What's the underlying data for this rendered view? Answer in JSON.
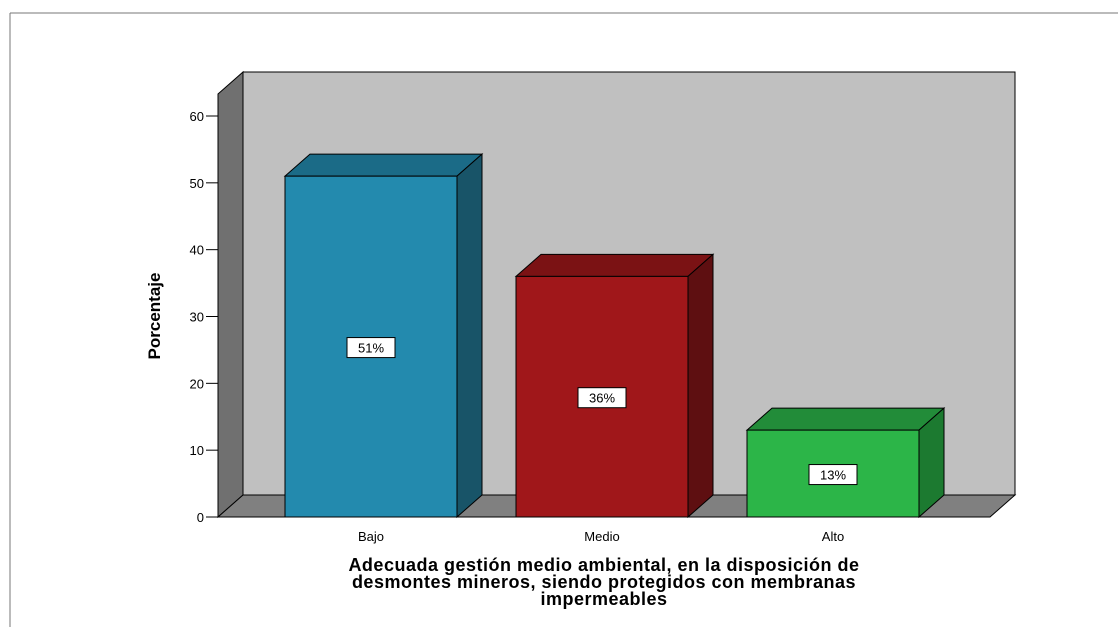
{
  "chart_data": {
    "type": "bar",
    "style": "3d",
    "categories": [
      "Bajo",
      "Medio",
      "Alto"
    ],
    "values": [
      51,
      36,
      13
    ],
    "data_labels": [
      "51%",
      "36%",
      "13%"
    ],
    "colors": {
      "bars": [
        "#238AAE",
        "#A0171A",
        "#2CB548"
      ],
      "bars_side": [
        "#185468",
        "#5E0F11",
        "#1C7A30"
      ],
      "bars_top": [
        "#1B6B87",
        "#7B1214",
        "#228C39"
      ],
      "back_wall": "#C0C0C0",
      "side_wall": "#707070",
      "floor": "#808080"
    },
    "ylabel": "Porcentaje",
    "xlabel_lines": [
      "Adecuada gestión medio ambiental, en la disposición de",
      "desmontes mineros, siendo protegidos con membranas",
      "impermeables"
    ],
    "ylim": [
      0,
      60
    ],
    "yticks": [
      0,
      10,
      20,
      30,
      40,
      50,
      60
    ],
    "grid": false,
    "legend": "none"
  }
}
